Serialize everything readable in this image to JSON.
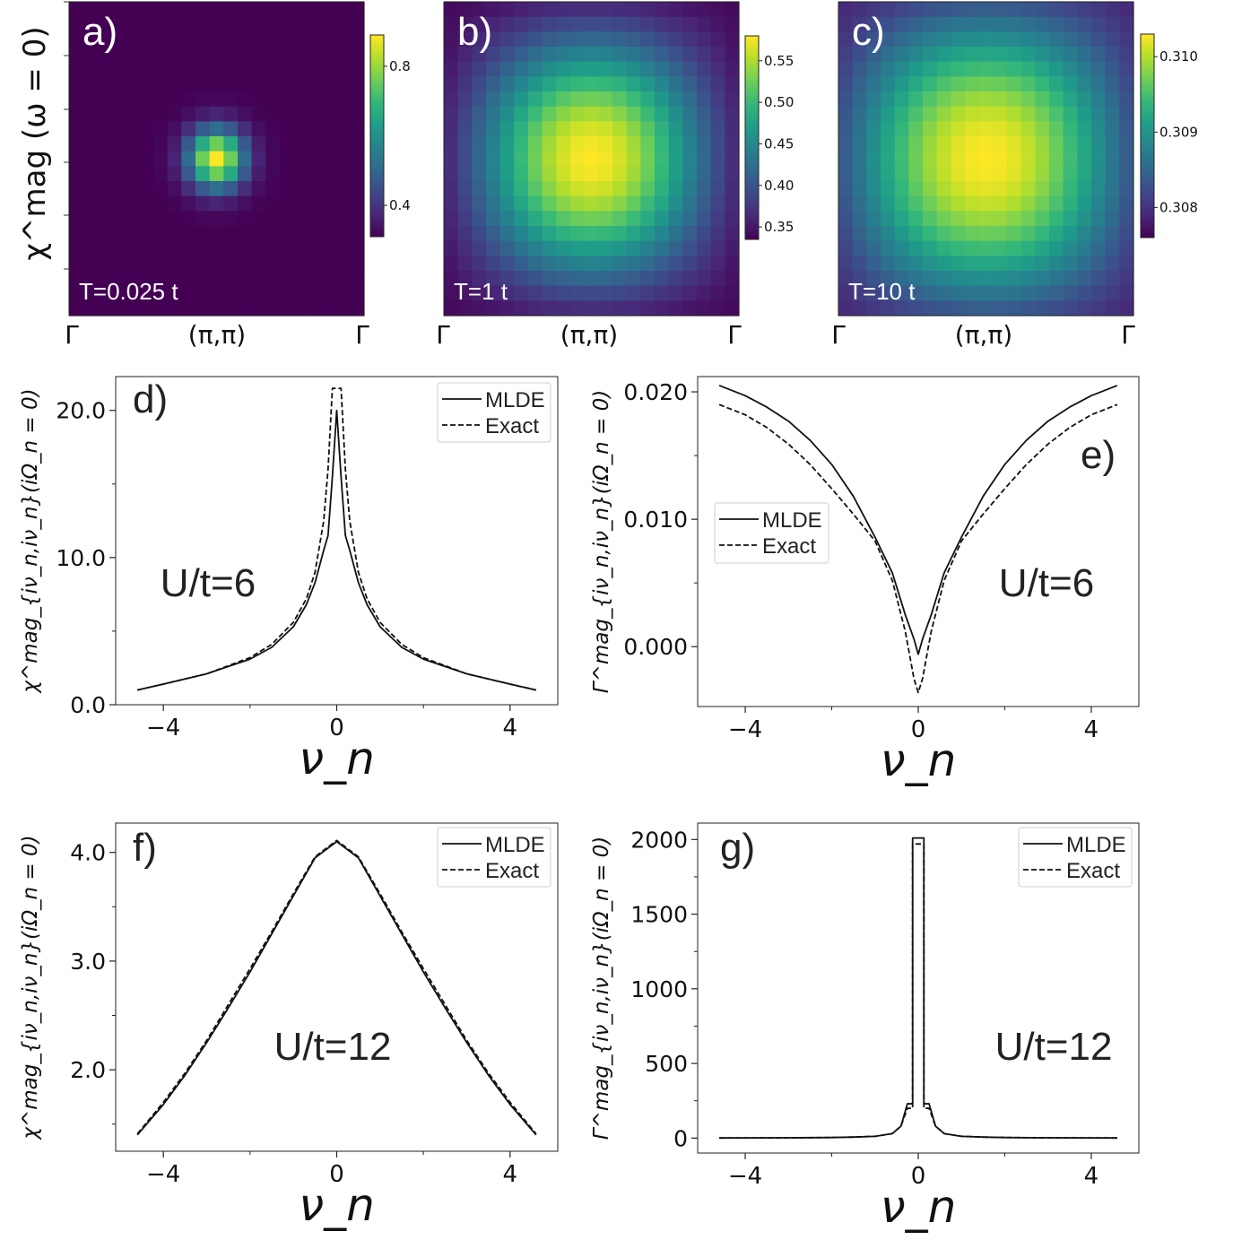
{
  "figure": {
    "heatmap_ylabel": "χ^mag (ω = 0)",
    "heatmap_xticks": [
      "Γ",
      "(π,π)",
      "Γ"
    ]
  },
  "chart_data": [
    {
      "id": "a",
      "type": "heatmap",
      "panel_label": "a)",
      "annotation": "T=0.025 t",
      "grid_size": 21,
      "peak_value": 0.89,
      "background_value": 0.31,
      "peak_width": 1.4,
      "colormap": "viridis",
      "colorbar": {
        "range": [
          0.31,
          0.89
        ],
        "ticks": [
          0.4,
          0.8
        ],
        "tick_labels": [
          "0.4",
          "0.8"
        ]
      }
    },
    {
      "id": "b",
      "type": "heatmap",
      "panel_label": "b)",
      "annotation": "T=1 t",
      "grid_size": 21,
      "peak_value": 0.58,
      "background_value": 0.335,
      "peak_width": 5.5,
      "colormap": "viridis",
      "colorbar": {
        "range": [
          0.335,
          0.58
        ],
        "ticks": [
          0.35,
          0.4,
          0.45,
          0.5,
          0.55
        ],
        "tick_labels": [
          "0.35",
          "0.40",
          "0.45",
          "0.50",
          "0.55"
        ]
      }
    },
    {
      "id": "c",
      "type": "heatmap",
      "panel_label": "c)",
      "annotation": "T=10 t",
      "grid_size": 21,
      "peak_value": 0.3103,
      "background_value": 0.3076,
      "peak_width": 7.5,
      "colormap": "viridis",
      "colorbar": {
        "range": [
          0.3076,
          0.3103
        ],
        "ticks": [
          0.308,
          0.309,
          0.31
        ],
        "tick_labels": [
          "0.308",
          "0.309",
          "0.310"
        ]
      }
    },
    {
      "id": "d",
      "type": "line",
      "panel_label": "d)",
      "annotation": "U/t=6",
      "xlabel": "ν_n",
      "ylabel": "χ^mag_{iν_n,iν_n}(iΩ_n = 0)",
      "xlim": [
        -5.1,
        5.1
      ],
      "ylim": [
        0,
        22.3
      ],
      "xticks": [
        -4,
        0,
        4
      ],
      "xtick_labels": [
        "−4",
        "0",
        "4"
      ],
      "yticks": [
        0,
        10,
        20
      ],
      "ytick_labels": [
        "0.0",
        "10.0",
        "20.0"
      ],
      "legend": {
        "position": "top-right",
        "entries": [
          "MLDE",
          "Exact"
        ]
      },
      "series": [
        {
          "name": "MLDE",
          "style": "solid",
          "x": [
            -4.6,
            -4.0,
            -3.0,
            -2.0,
            -1.5,
            -1.0,
            -0.7,
            -0.5,
            -0.3,
            -0.2,
            -0.1,
            0.0,
            0.1,
            0.2,
            0.3,
            0.5,
            0.7,
            1.0,
            1.5,
            2.0,
            3.0,
            4.0,
            4.6
          ],
          "y": [
            1.0,
            1.4,
            2.1,
            3.1,
            3.9,
            5.3,
            6.8,
            8.3,
            10.5,
            11.5,
            15.5,
            20.0,
            15.5,
            11.5,
            10.5,
            8.3,
            6.8,
            5.3,
            3.9,
            3.1,
            2.1,
            1.4,
            1.0
          ]
        },
        {
          "name": "Exact",
          "style": "dashed",
          "x": [
            -4.6,
            -4.0,
            -3.0,
            -2.0,
            -1.5,
            -1.0,
            -0.7,
            -0.5,
            -0.3,
            -0.2,
            -0.1,
            0.0,
            0.1,
            0.2,
            0.3,
            0.5,
            0.7,
            1.0,
            1.5,
            2.0,
            3.0,
            4.0,
            4.6
          ],
          "y": [
            1.0,
            1.4,
            2.1,
            3.2,
            4.1,
            5.6,
            7.2,
            9.0,
            12.5,
            16.0,
            21.5,
            21.5,
            21.5,
            16.0,
            12.5,
            9.0,
            7.2,
            5.6,
            4.1,
            3.2,
            2.1,
            1.4,
            1.0
          ]
        }
      ]
    },
    {
      "id": "e",
      "type": "line",
      "panel_label": "e)",
      "annotation": "U/t=6",
      "xlabel": "ν_n",
      "ylabel": "Γ^mag_{iν_n,iν_n}(iΩ_n = 0)",
      "xlim": [
        -5.1,
        5.1
      ],
      "ylim": [
        -0.0047,
        0.0212
      ],
      "xticks": [
        -4,
        0,
        4
      ],
      "xtick_labels": [
        "−4",
        "0",
        "4"
      ],
      "yticks": [
        0.0,
        0.01,
        0.02
      ],
      "ytick_labels": [
        "0.000",
        "0.010",
        "0.020"
      ],
      "legend": {
        "position": "center-left",
        "entries": [
          "MLDE",
          "Exact"
        ]
      },
      "series": [
        {
          "name": "MLDE",
          "style": "solid",
          "x": [
            -4.6,
            -4.0,
            -3.5,
            -3.0,
            -2.5,
            -2.0,
            -1.5,
            -1.0,
            -0.6,
            -0.3,
            -0.1,
            0.0,
            0.1,
            0.3,
            0.6,
            1.0,
            1.5,
            2.0,
            2.5,
            3.0,
            3.5,
            4.0,
            4.6
          ],
          "y": [
            0.0205,
            0.0197,
            0.0188,
            0.0177,
            0.0162,
            0.0143,
            0.0118,
            0.0086,
            0.0058,
            0.0025,
            0.0006,
            -0.0006,
            0.0006,
            0.0025,
            0.0058,
            0.0086,
            0.0118,
            0.0143,
            0.0162,
            0.0177,
            0.0188,
            0.0197,
            0.0205
          ]
        },
        {
          "name": "Exact",
          "style": "dashed",
          "x": [
            -4.6,
            -4.0,
            -3.5,
            -3.0,
            -2.5,
            -2.0,
            -1.5,
            -1.0,
            -0.6,
            -0.3,
            -0.1,
            0.0,
            0.1,
            0.3,
            0.6,
            1.0,
            1.5,
            2.0,
            2.5,
            3.0,
            3.5,
            4.0,
            4.6
          ],
          "y": [
            0.019,
            0.0182,
            0.0172,
            0.0159,
            0.0143,
            0.0124,
            0.0104,
            0.0083,
            0.0052,
            0.0012,
            -0.0025,
            -0.0036,
            -0.0025,
            0.0012,
            0.0052,
            0.0083,
            0.0104,
            0.0124,
            0.0143,
            0.0159,
            0.0172,
            0.0182,
            0.019
          ]
        }
      ]
    },
    {
      "id": "f",
      "type": "line",
      "panel_label": "f)",
      "annotation": "U/t=12",
      "xlabel": "ν_n",
      "ylabel": "χ^mag_{iν_n,iν_n}(iΩ_n = 0)",
      "xlim": [
        -5.1,
        5.1
      ],
      "ylim": [
        1.25,
        4.27
      ],
      "xticks": [
        -4,
        0,
        4
      ],
      "xtick_labels": [
        "−4",
        "0",
        "4"
      ],
      "yticks": [
        2.0,
        3.0,
        4.0
      ],
      "ytick_labels": [
        "2.0",
        "3.0",
        "4.0"
      ],
      "legend": {
        "position": "top-right",
        "entries": [
          "MLDE",
          "Exact"
        ]
      },
      "series": [
        {
          "name": "MLDE",
          "style": "solid",
          "x": [
            -4.6,
            -4.0,
            -3.5,
            -3.0,
            -2.5,
            -2.0,
            -1.5,
            -1.0,
            -0.5,
            0.0,
            0.5,
            1.0,
            1.5,
            2.0,
            2.5,
            3.0,
            3.5,
            4.0,
            4.6
          ],
          "y": [
            1.4,
            1.68,
            1.95,
            2.25,
            2.57,
            2.9,
            3.25,
            3.6,
            3.95,
            4.1,
            3.95,
            3.6,
            3.25,
            2.9,
            2.57,
            2.25,
            1.95,
            1.68,
            1.4
          ]
        },
        {
          "name": "Exact",
          "style": "dashed",
          "x": [
            -4.6,
            -4.0,
            -3.5,
            -3.0,
            -2.5,
            -2.0,
            -1.5,
            -1.0,
            -0.5,
            0.0,
            0.5,
            1.0,
            1.5,
            2.0,
            2.5,
            3.0,
            3.5,
            4.0,
            4.6
          ],
          "y": [
            1.41,
            1.7,
            1.97,
            2.27,
            2.6,
            2.93,
            3.27,
            3.62,
            3.96,
            4.11,
            3.96,
            3.62,
            3.27,
            2.93,
            2.6,
            2.27,
            1.97,
            1.7,
            1.41
          ]
        }
      ]
    },
    {
      "id": "g",
      "type": "line",
      "panel_label": "g)",
      "annotation": "U/t=12",
      "xlabel": "ν_n",
      "ylabel": "Γ^mag_{iν_n,iν_n}(iΩ_n = 0)",
      "xlim": [
        -5.1,
        5.1
      ],
      "ylim": [
        -100,
        2110
      ],
      "xticks": [
        -4,
        0,
        4
      ],
      "xtick_labels": [
        "−4",
        "0",
        "4"
      ],
      "yticks": [
        0,
        500,
        1000,
        1500,
        2000
      ],
      "ytick_labels": [
        "0",
        "500",
        "1000",
        "1500",
        "2000"
      ],
      "legend": {
        "position": "top-right",
        "entries": [
          "MLDE",
          "Exact"
        ]
      },
      "series": [
        {
          "name": "MLDE",
          "style": "solid",
          "x": [
            -4.6,
            -3.0,
            -2.0,
            -1.5,
            -1.0,
            -0.6,
            -0.4,
            -0.25,
            -0.13,
            -0.13,
            0.13,
            0.13,
            0.25,
            0.4,
            0.6,
            1.0,
            1.5,
            2.0,
            3.0,
            4.6
          ],
          "y": [
            1,
            2,
            4,
            7,
            12,
            30,
            80,
            230,
            230,
            2010,
            2010,
            230,
            230,
            80,
            30,
            12,
            7,
            4,
            2,
            1
          ]
        },
        {
          "name": "Exact",
          "style": "dashed",
          "x": [
            -4.6,
            -3.0,
            -2.0,
            -1.5,
            -1.0,
            -0.6,
            -0.4,
            -0.25,
            -0.13,
            -0.13,
            0.13,
            0.13,
            0.25,
            0.4,
            0.6,
            1.0,
            1.5,
            2.0,
            3.0,
            4.6
          ],
          "y": [
            1,
            2,
            4,
            7,
            12,
            30,
            80,
            200,
            200,
            1970,
            1970,
            200,
            200,
            80,
            30,
            12,
            7,
            4,
            2,
            1
          ]
        }
      ]
    }
  ]
}
